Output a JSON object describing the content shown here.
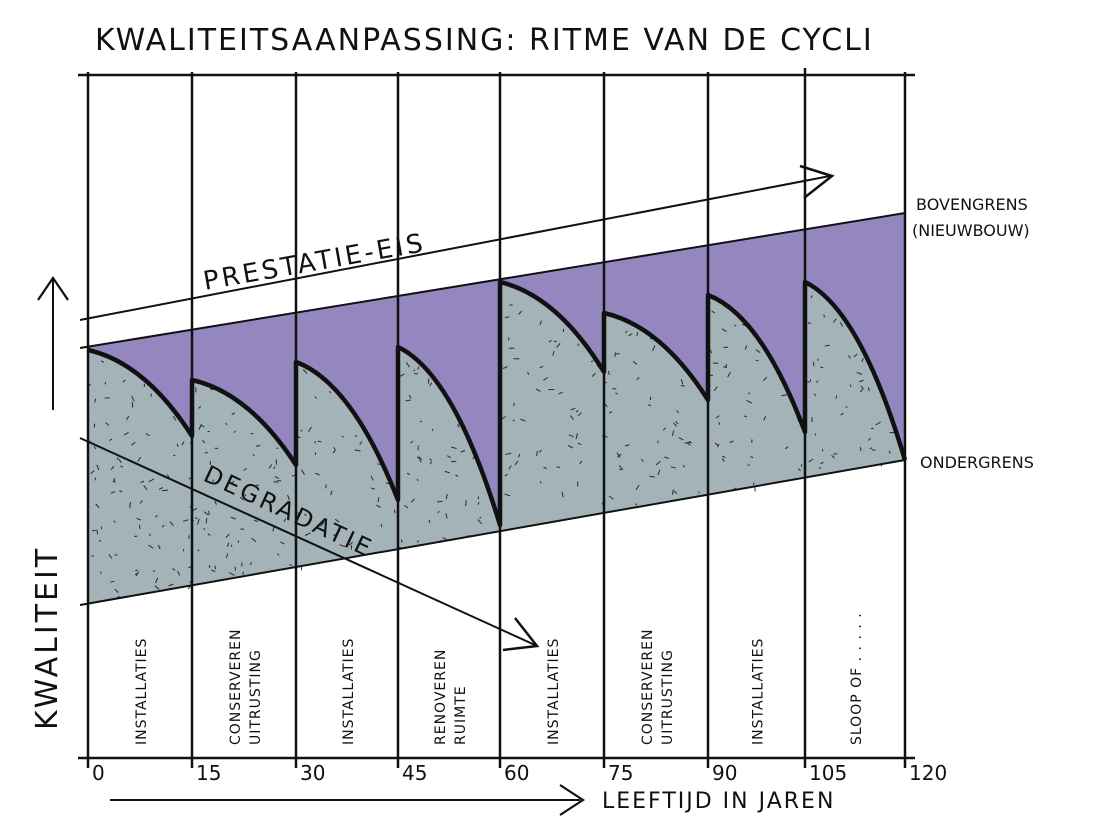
{
  "title": "KWALITEITSAANPASSING: RITME VAN DE CYCLI",
  "y_axis_label": "KWALITEIT",
  "x_axis_label": "LEEFTIJD IN JAREN",
  "labels": {
    "prestatie_eis": "PRESTATIE-EIS",
    "degradatie": "DEGRADATIE",
    "bovengrens": "BOVENGRENS",
    "bovengrens_sub": "(NIEUWBOUW)",
    "ondergrens": "ONDERGRENS"
  },
  "colors": {
    "upper_band": "#9487c0",
    "lower_band": "#a3b3b8",
    "ink": "#111111"
  },
  "chart_data": {
    "type": "area",
    "x_ticks": [
      0,
      15,
      30,
      45,
      60,
      75,
      90,
      105,
      120
    ],
    "x_range": [
      0,
      120
    ],
    "interventions": [
      {
        "start": 0,
        "end": 15,
        "label": "INSTALLATIES"
      },
      {
        "start": 15,
        "end": 30,
        "label": "CONSERVEREN UITRUSTING"
      },
      {
        "start": 30,
        "end": 45,
        "label": "INSTALLATIES"
      },
      {
        "start": 45,
        "end": 60,
        "label": "RENOVEREN RUIMTE"
      },
      {
        "start": 60,
        "end": 75,
        "label": "INSTALLATIES"
      },
      {
        "start": 75,
        "end": 90,
        "label": "CONSERVEREN UITRUSTING"
      },
      {
        "start": 90,
        "end": 105,
        "label": "INSTALLATIES"
      },
      {
        "start": 105,
        "end": 120,
        "label": "SLOOP OF . . . . ."
      }
    ]
  }
}
